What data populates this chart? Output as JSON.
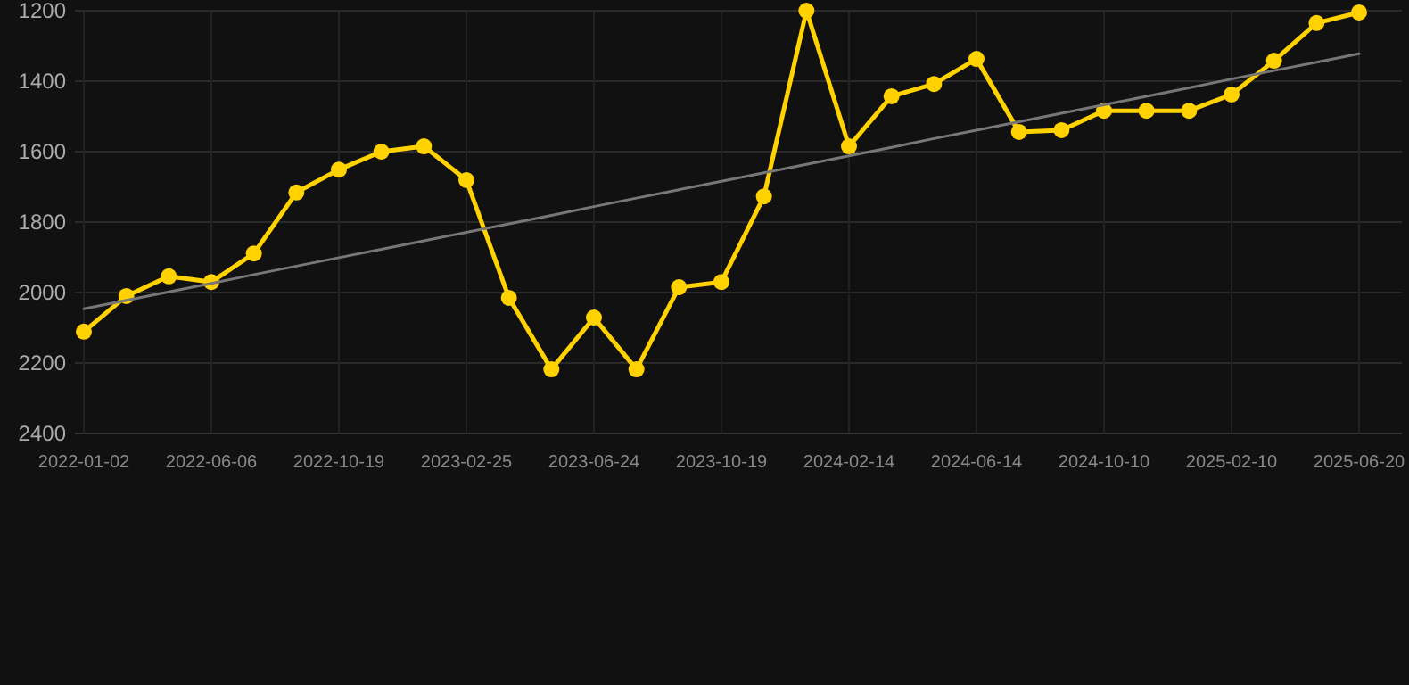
{
  "chart_data": {
    "type": "line",
    "categories": [
      "2022-01-02",
      null,
      null,
      "2022-06-06",
      null,
      null,
      "2022-10-19",
      null,
      null,
      "2023-02-25",
      null,
      null,
      "2023-06-24",
      null,
      null,
      "2023-10-19",
      null,
      null,
      "2024-02-14",
      null,
      null,
      "2024-06-14",
      null,
      null,
      "2024-10-10",
      null,
      null,
      "2025-02-10",
      null,
      null,
      "2025-06-20"
    ],
    "series": [
      {
        "color": "#ffd200",
        "marker": "circle",
        "values": [
          2111,
          2010,
          1954,
          1970,
          1889,
          1716,
          1651,
          1600,
          1585,
          1681,
          2015,
          2218,
          2071,
          2218,
          1985,
          1970,
          1727,
          1200,
          1585,
          1443,
          1408,
          1337,
          1544,
          1539,
          1484,
          1484,
          1484,
          1438,
          1342,
          1235,
          1205
        ]
      },
      {
        "color": "#777777",
        "marker": "none",
        "values": [
          2046,
          2022,
          1998,
          1974,
          1949,
          1925,
          1901,
          1877,
          1853,
          1829,
          1805,
          1781,
          1756,
          1732,
          1708,
          1684,
          1660,
          1636,
          1612,
          1588,
          1563,
          1539,
          1515,
          1491,
          1467,
          1443,
          1419,
          1394,
          1370,
          1346,
          1322
        ]
      }
    ],
    "ylim": [
      2400,
      1200
    ],
    "yticks": [
      1200,
      1400,
      1600,
      1800,
      2000,
      2200,
      2400
    ],
    "grid": true
  }
}
